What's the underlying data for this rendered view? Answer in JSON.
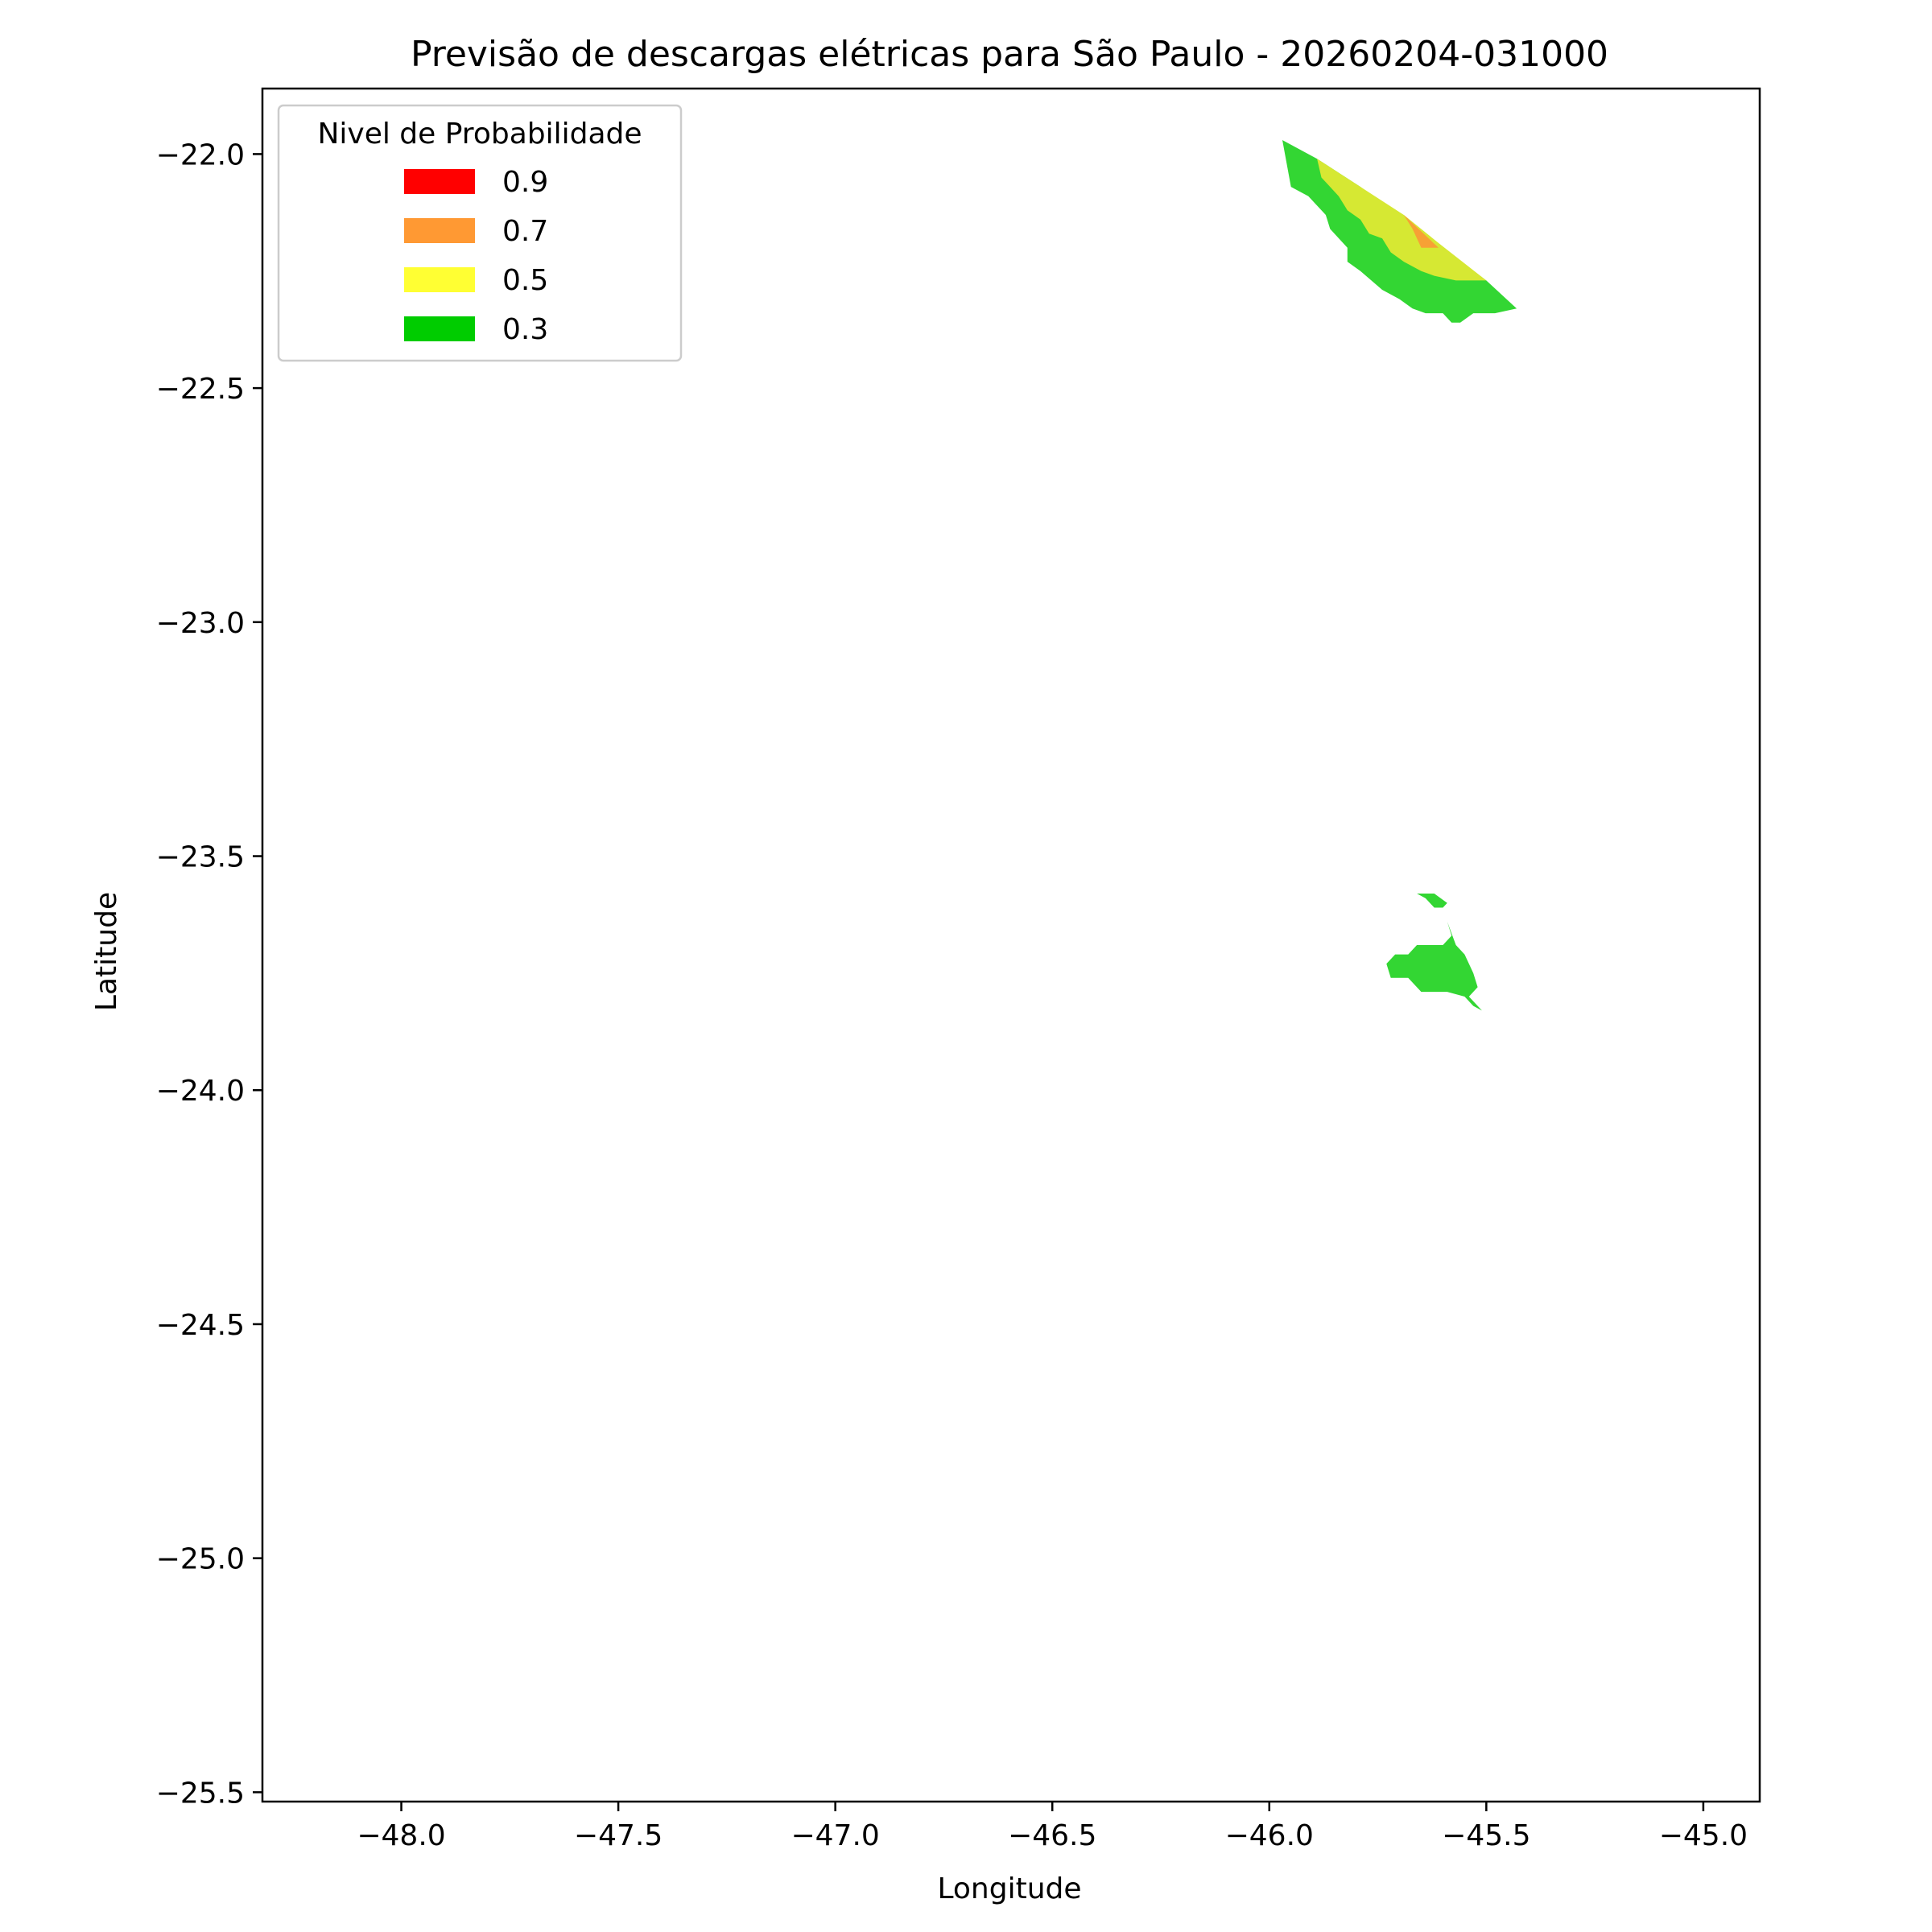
{
  "chart_data": {
    "type": "contour-map",
    "title": "Previsão de descargas elétricas para São Paulo - 20260204-031000",
    "xlabel": "Longitude",
    "ylabel": "Latitude",
    "xlim": [
      -48.32,
      -44.87
    ],
    "ylim": [
      -25.52,
      -21.86
    ],
    "grid": false,
    "x_ticks": [
      -48.0,
      -47.5,
      -47.0,
      -46.5,
      -46.0,
      -45.5,
      -45.0
    ],
    "y_ticks": [
      -22.0,
      -22.5,
      -23.0,
      -23.5,
      -24.0,
      -24.5,
      -25.0,
      -25.5
    ],
    "x_tick_labels": [
      "−48.0",
      "−47.5",
      "−47.0",
      "−46.5",
      "−46.0",
      "−45.5",
      "−45.0"
    ],
    "y_tick_labels": [
      "−22.0",
      "−22.5",
      "−23.0",
      "−23.5",
      "−24.0",
      "−24.5",
      "−25.0",
      "−25.5"
    ],
    "legend": {
      "title": "Nivel de Probabilidade",
      "placement": "upper-left",
      "entries": [
        {
          "label": "0.9",
          "color": "#ff0000"
        },
        {
          "label": "0.7",
          "color": "#ff9933"
        },
        {
          "label": "0.5",
          "color": "#ffff33"
        },
        {
          "label": "0.3",
          "color": "#00cc00"
        }
      ]
    },
    "regions": [
      {
        "name": "north-cell-0.3",
        "level": "0.3",
        "color": "#33d633",
        "points": [
          [
            -45.97,
            -21.97
          ],
          [
            -45.89,
            -22.01
          ],
          [
            -45.79,
            -22.07
          ],
          [
            -45.69,
            -22.14
          ],
          [
            -45.6,
            -22.2
          ],
          [
            -45.5,
            -22.27
          ],
          [
            -45.43,
            -22.33
          ],
          [
            -45.48,
            -22.34
          ],
          [
            -45.53,
            -22.34
          ],
          [
            -45.56,
            -22.36
          ],
          [
            -45.58,
            -22.36
          ],
          [
            -45.6,
            -22.34
          ],
          [
            -45.64,
            -22.34
          ],
          [
            -45.67,
            -22.33
          ],
          [
            -45.7,
            -22.31
          ],
          [
            -45.74,
            -22.29
          ],
          [
            -45.79,
            -22.25
          ],
          [
            -45.82,
            -22.23
          ],
          [
            -45.82,
            -22.2
          ],
          [
            -45.86,
            -22.16
          ],
          [
            -45.87,
            -22.13
          ],
          [
            -45.89,
            -22.11
          ],
          [
            -45.91,
            -22.09
          ],
          [
            -45.95,
            -22.07
          ]
        ]
      },
      {
        "name": "north-cell-0.5",
        "level": "0.5",
        "color": "#d6e833",
        "points": [
          [
            -45.89,
            -22.01
          ],
          [
            -45.79,
            -22.07
          ],
          [
            -45.69,
            -22.13
          ],
          [
            -45.61,
            -22.19
          ],
          [
            -45.5,
            -22.27
          ],
          [
            -45.57,
            -22.27
          ],
          [
            -45.62,
            -22.26
          ],
          [
            -45.65,
            -22.25
          ],
          [
            -45.69,
            -22.23
          ],
          [
            -45.72,
            -22.21
          ],
          [
            -45.74,
            -22.18
          ],
          [
            -45.77,
            -22.17
          ],
          [
            -45.79,
            -22.14
          ],
          [
            -45.82,
            -22.12
          ],
          [
            -45.84,
            -22.09
          ],
          [
            -45.86,
            -22.07
          ],
          [
            -45.88,
            -22.05
          ]
        ]
      },
      {
        "name": "north-cell-0.7",
        "level": "0.7",
        "color": "#f7a135",
        "points": [
          [
            -45.69,
            -22.13
          ],
          [
            -45.61,
            -22.2
          ],
          [
            -45.65,
            -22.2
          ],
          [
            -45.67,
            -22.16
          ]
        ]
      },
      {
        "name": "south-cell-small-0.3",
        "level": "0.3",
        "color": "#33d633",
        "points": [
          [
            -45.66,
            -23.58
          ],
          [
            -45.62,
            -23.58
          ],
          [
            -45.59,
            -23.6
          ],
          [
            -45.6,
            -23.61
          ],
          [
            -45.62,
            -23.61
          ],
          [
            -45.64,
            -23.59
          ]
        ]
      },
      {
        "name": "south-cell-large-0.3",
        "level": "0.3",
        "color": "#33d633",
        "points": [
          [
            -45.59,
            -23.64
          ],
          [
            -45.57,
            -23.69
          ],
          [
            -45.55,
            -23.71
          ],
          [
            -45.53,
            -23.75
          ],
          [
            -45.52,
            -23.78
          ],
          [
            -45.54,
            -23.8
          ],
          [
            -45.51,
            -23.83
          ],
          [
            -45.53,
            -23.82
          ],
          [
            -45.55,
            -23.8
          ],
          [
            -45.59,
            -23.79
          ],
          [
            -45.65,
            -23.79
          ],
          [
            -45.68,
            -23.76
          ],
          [
            -45.72,
            -23.76
          ],
          [
            -45.73,
            -23.73
          ],
          [
            -45.71,
            -23.71
          ],
          [
            -45.68,
            -23.71
          ],
          [
            -45.66,
            -23.69
          ],
          [
            -45.6,
            -23.69
          ],
          [
            -45.58,
            -23.67
          ]
        ]
      }
    ]
  }
}
